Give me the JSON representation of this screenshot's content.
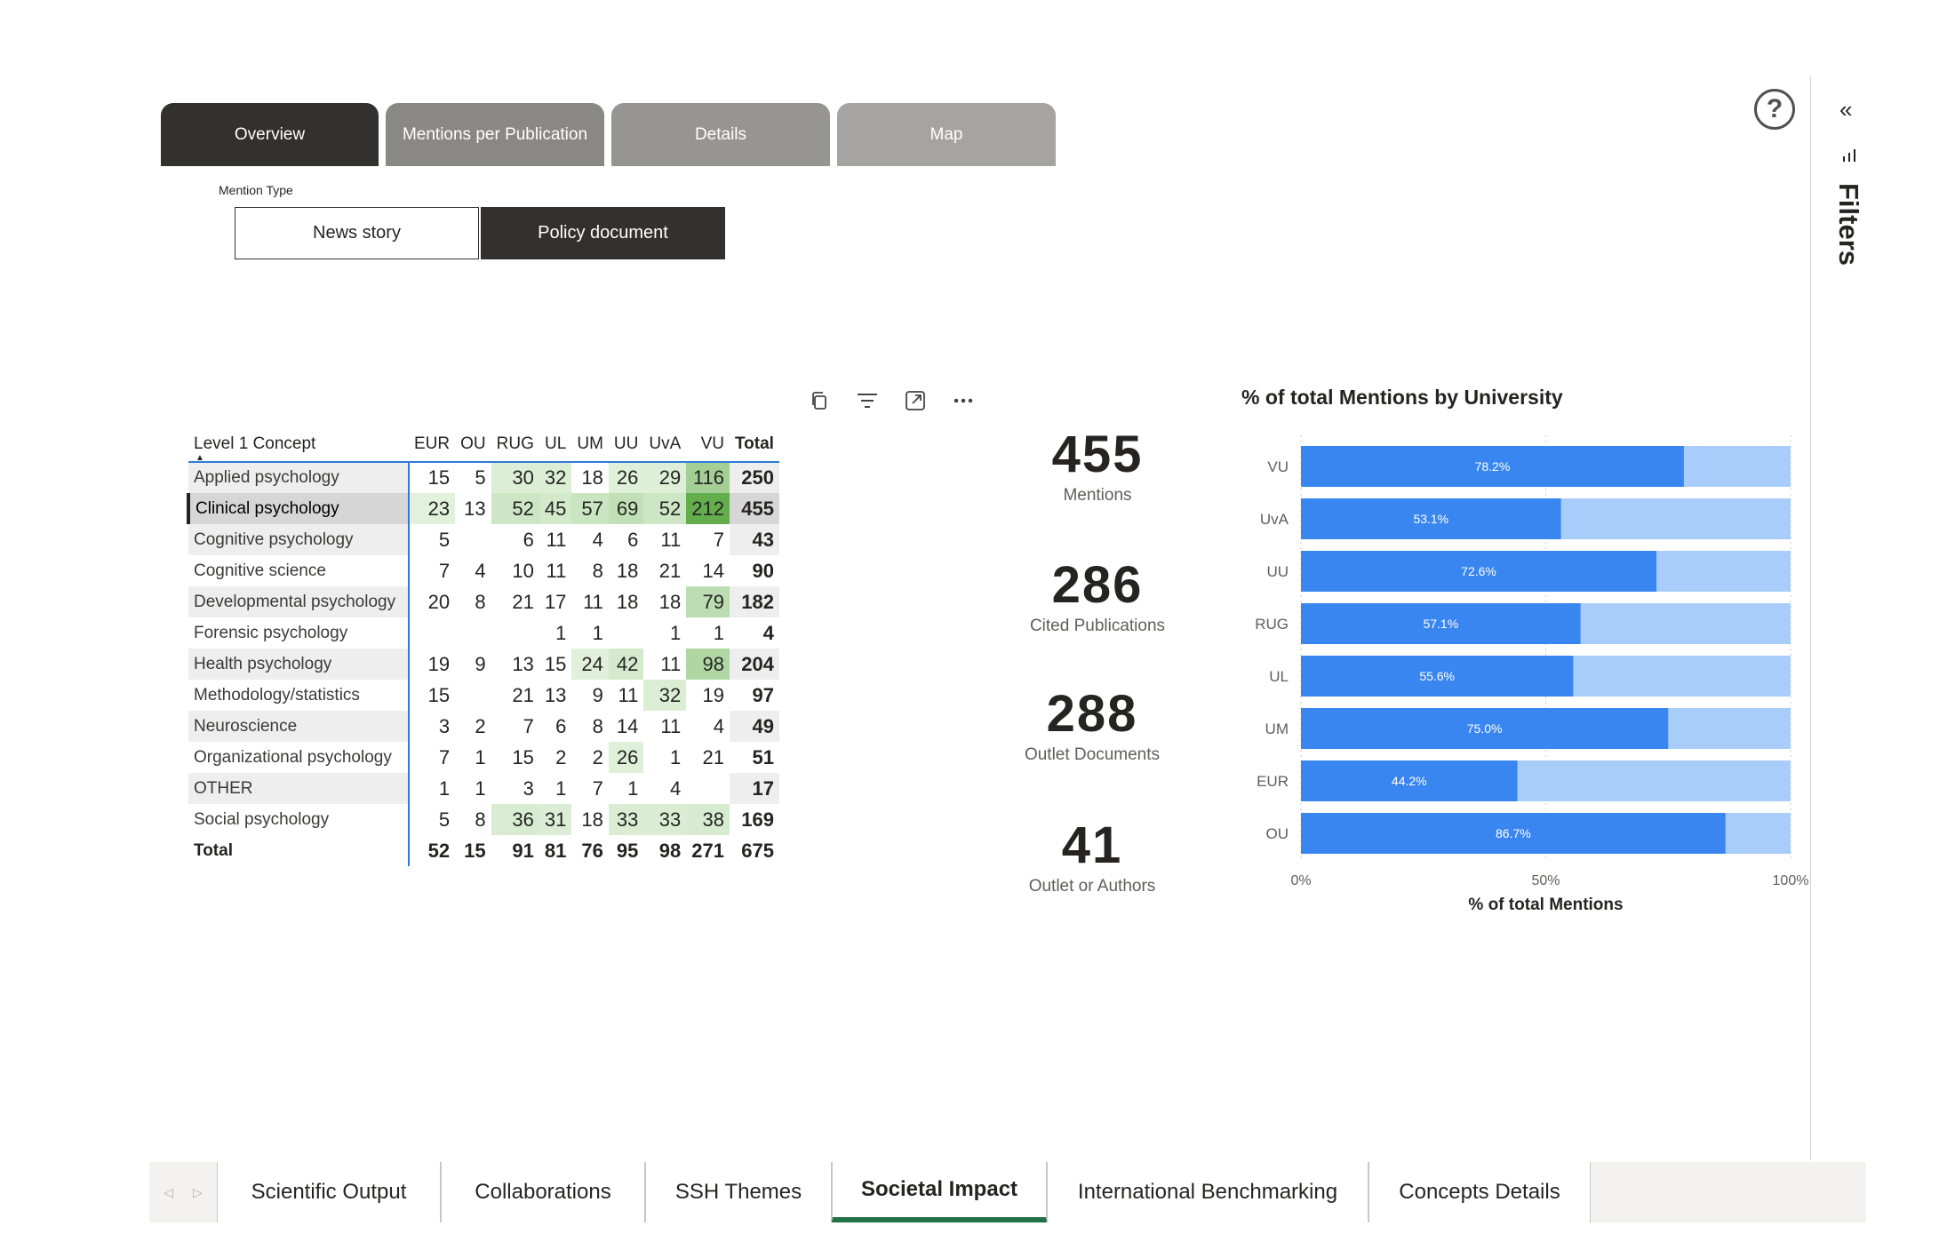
{
  "nav_tabs": [
    {
      "label": "Overview",
      "color": "#323130"
    },
    {
      "label": "Mentions per Publication",
      "color": "#8a8886"
    },
    {
      "label": "Details",
      "color": "#979593"
    },
    {
      "label": "Map",
      "color": "#a6a4a2"
    }
  ],
  "slicer": {
    "label": "Mention Type",
    "options": [
      {
        "label": "News story",
        "selected": false
      },
      {
        "label": "Policy document",
        "selected": true
      }
    ]
  },
  "visual_header_icons": [
    "copy-icon",
    "filter-icon",
    "focus-mode-icon",
    "more-options-icon"
  ],
  "matrix": {
    "row_header": "Level 1 Concept",
    "columns": [
      "EUR",
      "OU",
      "RUG",
      "UL",
      "UM",
      "UU",
      "UvA",
      "VU"
    ],
    "total_label": "Total",
    "rows": [
      {
        "label": "Applied psychology",
        "values": [
          15,
          5,
          30,
          32,
          18,
          26,
          29,
          116
        ],
        "total": 250
      },
      {
        "label": "Clinical psychology",
        "values": [
          23,
          13,
          52,
          45,
          57,
          69,
          52,
          212
        ],
        "total": 455,
        "selected": true
      },
      {
        "label": "Cognitive psychology",
        "values": [
          5,
          null,
          6,
          11,
          4,
          6,
          11,
          7
        ],
        "total": 43
      },
      {
        "label": "Cognitive science",
        "values": [
          7,
          4,
          10,
          11,
          8,
          18,
          21,
          14
        ],
        "total": 90
      },
      {
        "label": "Developmental psychology",
        "values": [
          20,
          8,
          21,
          17,
          11,
          18,
          18,
          79
        ],
        "total": 182
      },
      {
        "label": "Forensic psychology",
        "values": [
          null,
          null,
          null,
          1,
          1,
          null,
          1,
          1
        ],
        "total": 4
      },
      {
        "label": "Health psychology",
        "values": [
          19,
          9,
          13,
          15,
          24,
          42,
          11,
          98
        ],
        "total": 204
      },
      {
        "label": "Methodology/statistics",
        "values": [
          15,
          null,
          21,
          13,
          9,
          11,
          32,
          19
        ],
        "total": 97
      },
      {
        "label": "Neuroscience",
        "values": [
          3,
          2,
          7,
          6,
          8,
          14,
          11,
          4
        ],
        "total": 49
      },
      {
        "label": "Organizational psychology",
        "values": [
          7,
          1,
          15,
          2,
          2,
          26,
          1,
          21
        ],
        "total": 51
      },
      {
        "label": "OTHER",
        "values": [
          1,
          1,
          3,
          1,
          7,
          1,
          4,
          null
        ],
        "total": 17
      },
      {
        "label": "Social psychology",
        "values": [
          5,
          8,
          36,
          31,
          18,
          33,
          33,
          38
        ],
        "total": 169
      }
    ],
    "totals": {
      "label": "Total",
      "values": [
        52,
        15,
        91,
        81,
        76,
        95,
        98,
        271
      ],
      "total": 675
    }
  },
  "cards": [
    {
      "value": "455",
      "label": "Mentions"
    },
    {
      "value": "286",
      "label": "Cited Publications"
    },
    {
      "value": "288",
      "label": "Outlet Documents"
    },
    {
      "value": "41",
      "label": "Outlet or Authors"
    }
  ],
  "chart_data": {
    "type": "bar",
    "orientation": "horizontal",
    "stacked_100": true,
    "title": "% of total Mentions by University",
    "xlabel": "% of total Mentions",
    "ylabel": "",
    "categories": [
      "VU",
      "UvA",
      "UU",
      "RUG",
      "UL",
      "UM",
      "EUR",
      "OU"
    ],
    "values": [
      78.2,
      53.1,
      72.6,
      57.1,
      55.6,
      75.0,
      44.2,
      86.7
    ],
    "data_labels": [
      "78.2%",
      "53.1%",
      "72.6%",
      "57.1%",
      "55.6%",
      "75.0%",
      "44.2%",
      "86.7%"
    ],
    "xlim": [
      0,
      100
    ],
    "x_ticks": [
      "0%",
      "50%",
      "100%"
    ],
    "colors": {
      "primary": "#3a86f0",
      "remainder": "#a8cdfa"
    },
    "grid": true
  },
  "filters_pane": {
    "label": "Filters",
    "collapse_icon": "chevron-double-left-icon",
    "help_icon": "help-icon"
  },
  "bottom_tabs": [
    {
      "label": "Scientific Output",
      "active": false
    },
    {
      "label": "Collaborations",
      "active": false
    },
    {
      "label": "SSH Themes",
      "active": false
    },
    {
      "label": "Societal Impact",
      "active": true
    },
    {
      "label": "International Benchmarking",
      "active": false
    },
    {
      "label": "Concepts Details",
      "active": false
    }
  ]
}
